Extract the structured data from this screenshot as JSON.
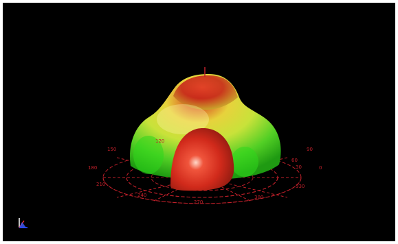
{
  "viewer": {
    "background_color": "#000000",
    "grid_color": "#c0202a",
    "pattern_colors": {
      "max": "#d6231b",
      "mid": "#e6e23a",
      "min": "#28d21c"
    }
  },
  "polar_grid": {
    "angle_labels": [
      "90",
      "60",
      "30",
      "0",
      "330",
      "300",
      "270",
      "240",
      "210",
      "180",
      "150",
      "120"
    ]
  },
  "axis_triad": {
    "icon": "axis-triad-icon",
    "x_color": "#1e3cff",
    "y_color": "#ff3030",
    "z_color": "#ffffff"
  }
}
